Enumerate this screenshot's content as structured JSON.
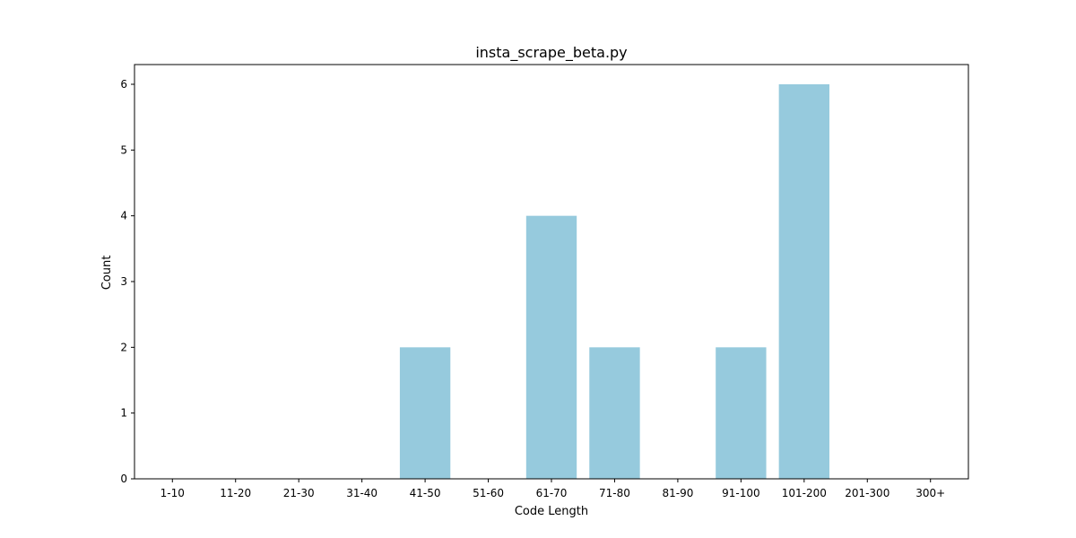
{
  "chart_data": {
    "type": "bar",
    "title": "insta_scrape_beta.py",
    "xlabel": "Code Length",
    "ylabel": "Count",
    "categories": [
      "1-10",
      "11-20",
      "21-30",
      "31-40",
      "41-50",
      "51-60",
      "61-70",
      "71-80",
      "81-90",
      "91-100",
      "101-200",
      "201-300",
      "300+"
    ],
    "values": [
      0,
      0,
      0,
      0,
      2,
      0,
      4,
      2,
      0,
      2,
      6,
      0,
      0
    ],
    "ylim": [
      0,
      6.3
    ],
    "yticks": [
      0,
      1,
      2,
      3,
      4,
      5,
      6
    ],
    "bar_color": "#96cadd",
    "grid": false,
    "legend": "none"
  }
}
